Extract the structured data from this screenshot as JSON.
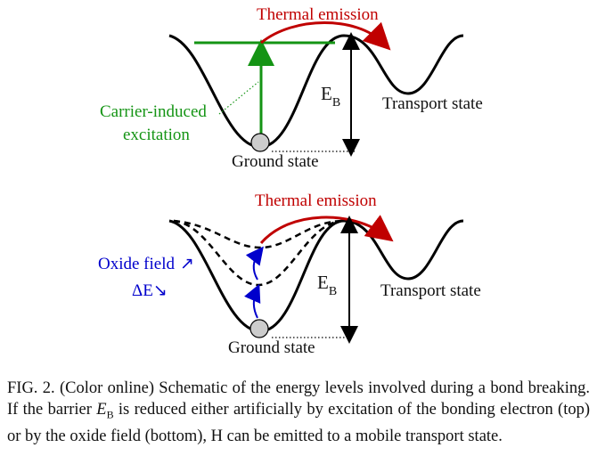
{
  "top_panel": {
    "thermal_emission": "Thermal emission",
    "carrier_induced": "Carrier-induced",
    "excitation": "excitation",
    "eb_main": "E",
    "eb_sub": "B",
    "transport_state": "Transport state",
    "ground_state": "Ground state"
  },
  "bottom_panel": {
    "thermal_emission": "Thermal emission",
    "oxide_field": "Oxide field",
    "oxide_arrow": "↗",
    "delta_e": "ΔE",
    "delta_arrow": "↘",
    "eb_main": "E",
    "eb_sub": "B",
    "transport_state": "Transport state",
    "ground_state": "Ground state"
  },
  "caption": {
    "label": "FIG. 2.",
    "part1": " (Color online) Schematic of the energy levels involved during a bond breaking. If the barrier ",
    "eb_main": "E",
    "eb_sub": "B",
    "part2": " is reduced either artificially by excitation of the bonding electron (top) or by the oxide field (bottom), H can be emitted to a mobile transport state."
  },
  "colors": {
    "thermal": "#c00000",
    "excitation": "#149414",
    "oxide": "#0000cc",
    "curve": "#000000",
    "ball": "#cccccc"
  }
}
